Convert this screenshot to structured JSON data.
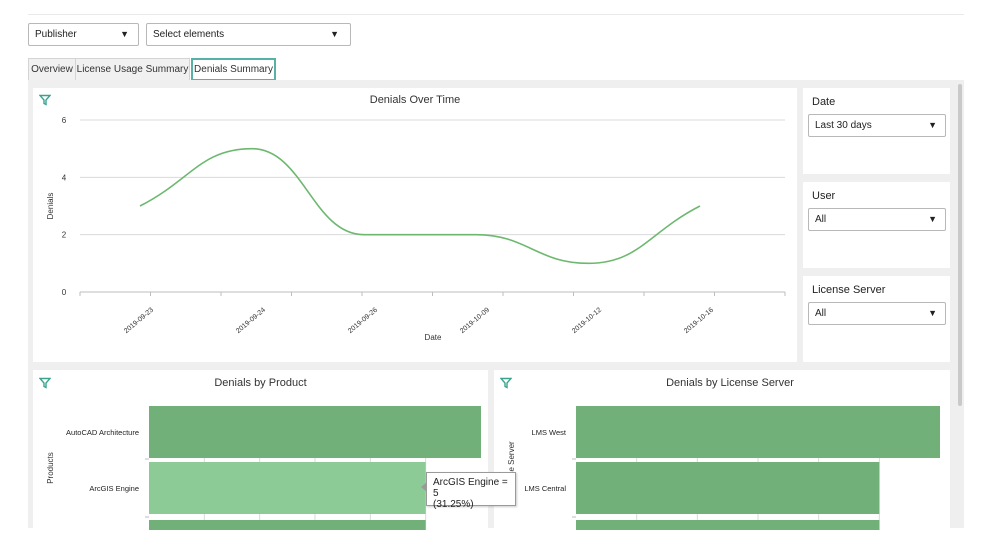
{
  "toolbar": {
    "publisher_label": "Publisher",
    "elements_placeholder": "Select elements"
  },
  "tabs": [
    {
      "label": "Overview",
      "active": false
    },
    {
      "label": "License Usage Summary",
      "active": false
    },
    {
      "label": "Denials Summary",
      "active": true
    }
  ],
  "colors": {
    "accent": "#57b1a6",
    "line": "#6db86f",
    "bar": "#72b07a",
    "bar_highlight": "#8dcb96"
  },
  "filters": {
    "date": {
      "label": "Date",
      "value": "Last 30 days"
    },
    "user": {
      "label": "User",
      "value": "All"
    },
    "license_server": {
      "label": "License Server",
      "value": "All"
    }
  },
  "tooltip": {
    "line1": "ArcGIS Engine = 5",
    "line2": "(31.25%)"
  },
  "chart_data": [
    {
      "type": "line",
      "title": "Denials Over Time",
      "xlabel": "Date",
      "ylabel": "Denials",
      "x": [
        "2019-09-23",
        "2019-09-24",
        "2019-09-26",
        "2019-10-09",
        "2019-10-12",
        "2019-10-16"
      ],
      "y": [
        3,
        5,
        2,
        2,
        1,
        3
      ],
      "ylim": [
        0,
        6
      ],
      "yticks": [
        0,
        2,
        4,
        6
      ],
      "grid": true
    },
    {
      "type": "bar",
      "orientation": "horizontal",
      "title": "Denials by Product",
      "ylabel": "Products",
      "categories": [
        "AutoCAD Architecture",
        "ArcGIS Engine",
        ""
      ],
      "values": [
        6,
        5,
        5
      ],
      "xlim": [
        0,
        6
      ]
    },
    {
      "type": "bar",
      "orientation": "horizontal",
      "title": "Denials by License Server",
      "ylabel": "License Server",
      "categories": [
        "LMS West",
        "LMS Central",
        ""
      ],
      "values": [
        6,
        5,
        5
      ],
      "xlim": [
        0,
        6
      ]
    }
  ]
}
